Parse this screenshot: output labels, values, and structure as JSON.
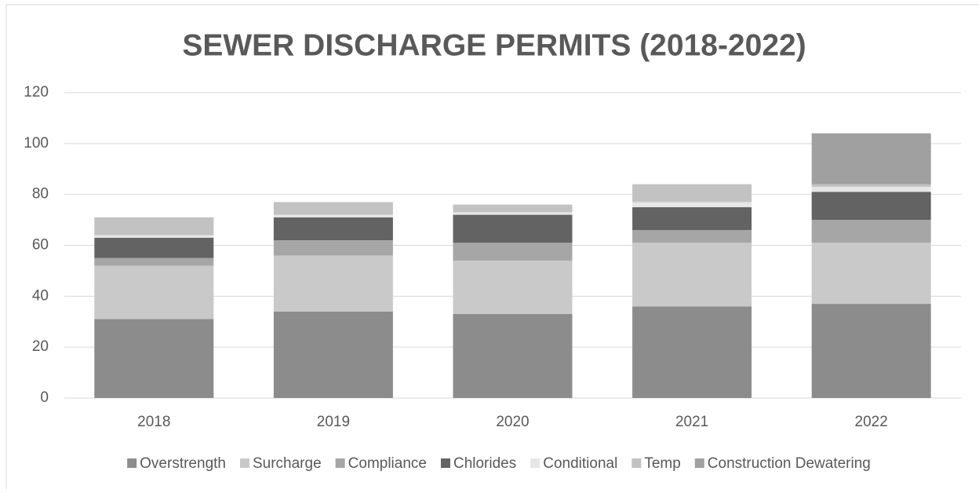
{
  "chart_data": {
    "type": "stacked_bar",
    "title": "SEWER DISCHARGE PERMITS (2018-2022)",
    "categories": [
      "2018",
      "2019",
      "2020",
      "2021",
      "2022"
    ],
    "series": [
      {
        "name": "Overstrength",
        "color": "#8c8c8c",
        "values": [
          31,
          34,
          33,
          36,
          37
        ]
      },
      {
        "name": "Surcharge",
        "color": "#c9c9c9",
        "values": [
          21,
          22,
          21,
          25,
          24
        ]
      },
      {
        "name": "Compliance",
        "color": "#a6a6a6",
        "values": [
          3,
          6,
          7,
          5,
          9
        ]
      },
      {
        "name": "Chlorides",
        "color": "#636363",
        "values": [
          8,
          9,
          11,
          9,
          11
        ]
      },
      {
        "name": "Conditional",
        "color": "#e6e6e6",
        "values": [
          1,
          1,
          1,
          2,
          2
        ]
      },
      {
        "name": "Temp",
        "color": "#c2c2c2",
        "values": [
          7,
          5,
          3,
          7,
          1
        ]
      },
      {
        "name": "Construction Dewatering",
        "color": "#a0a0a0",
        "values": [
          0,
          0,
          0,
          0,
          20
        ]
      }
    ],
    "ylim": [
      0,
      120
    ],
    "yticks": [
      0,
      20,
      40,
      60,
      80,
      100,
      120
    ],
    "grid": true,
    "legend": "bottom"
  }
}
